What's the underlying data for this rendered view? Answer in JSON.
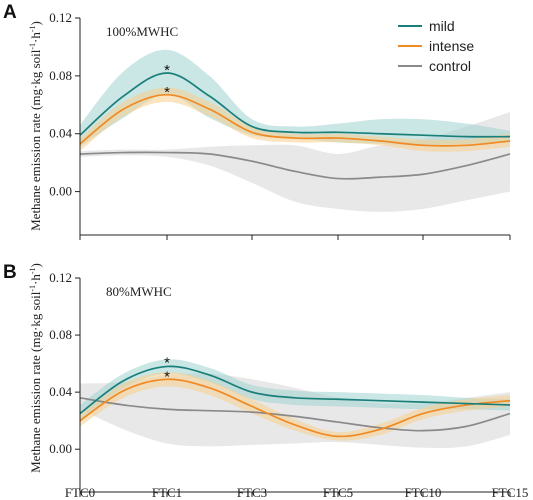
{
  "colors": {
    "mild": "#1a7f7a",
    "mild_band": "#9fd1cf",
    "intense": "#f08a24",
    "intense_band": "#f7cf8e",
    "control": "#8a8a8a",
    "control_band": "#dcdcdc"
  },
  "legend": {
    "placement": "top-right",
    "items": [
      {
        "key": "mild",
        "label": "mild"
      },
      {
        "key": "intense",
        "label": "intense"
      },
      {
        "key": "control",
        "label": "control"
      }
    ]
  },
  "chart_data": [
    {
      "type": "line",
      "panel": "A",
      "condition": "100%MWHC",
      "ylabel": {
        "main": "Methane emission rate (mg·kg soil",
        "sup1": "-1",
        "mid": "·h",
        "sup2": "-1",
        "end": ")"
      },
      "categories": [
        "FTC0",
        "FTC1",
        "FTC3",
        "FTC5",
        "FTC10",
        "FTC15"
      ],
      "ylim": [
        -0.03,
        0.12
      ],
      "yticks": [
        0.0,
        0.04,
        0.08,
        0.12
      ],
      "ytick_labels": [
        "0.00",
        "0.04",
        "0.08",
        "0.12"
      ],
      "grid": false,
      "series": [
        {
          "key": "mild",
          "name": "mild",
          "x": [
            0,
            0.5,
            1,
            1.5,
            2,
            2.5,
            3,
            3.5,
            4,
            4.5,
            5
          ],
          "values": [
            0.039,
            0.066,
            0.082,
            0.066,
            0.045,
            0.041,
            0.041,
            0.04,
            0.039,
            0.038,
            0.038
          ],
          "upper": [
            0.046,
            0.083,
            0.098,
            0.08,
            0.05,
            0.045,
            0.047,
            0.05,
            0.05,
            0.047,
            0.042
          ],
          "lower": [
            0.031,
            0.051,
            0.067,
            0.051,
            0.039,
            0.037,
            0.034,
            0.033,
            0.032,
            0.033,
            0.034
          ]
        },
        {
          "key": "intense",
          "name": "intense",
          "x": [
            0,
            0.5,
            1,
            1.5,
            2,
            2.5,
            3,
            3.5,
            4,
            4.5,
            5
          ],
          "values": [
            0.033,
            0.057,
            0.067,
            0.057,
            0.041,
            0.037,
            0.037,
            0.035,
            0.032,
            0.032,
            0.035
          ],
          "upper": [
            0.037,
            0.062,
            0.072,
            0.062,
            0.045,
            0.04,
            0.04,
            0.038,
            0.036,
            0.036,
            0.04
          ],
          "lower": [
            0.028,
            0.052,
            0.062,
            0.052,
            0.037,
            0.034,
            0.034,
            0.032,
            0.028,
            0.028,
            0.031
          ]
        },
        {
          "key": "control",
          "name": "control",
          "x": [
            0,
            0.5,
            1,
            1.5,
            2,
            2.5,
            3,
            3.5,
            4,
            4.5,
            5
          ],
          "values": [
            0.026,
            0.027,
            0.027,
            0.026,
            0.021,
            0.014,
            0.009,
            0.01,
            0.012,
            0.018,
            0.026
          ],
          "upper": [
            0.028,
            0.029,
            0.029,
            0.031,
            0.032,
            0.032,
            0.026,
            0.032,
            0.036,
            0.045,
            0.055
          ],
          "lower": [
            0.024,
            0.025,
            0.024,
            0.018,
            0.006,
            -0.007,
            -0.012,
            -0.014,
            -0.012,
            -0.006,
            0.0
          ]
        }
      ],
      "annotations": [
        {
          "text": "*",
          "x": 1,
          "y": 0.086,
          "series": "mild"
        },
        {
          "text": "*",
          "x": 1,
          "y": 0.071,
          "series": "intense"
        }
      ]
    },
    {
      "type": "line",
      "panel": "B",
      "condition": "80%MWHC",
      "ylabel": {
        "main": "Methane emission rate (mg·kg soil",
        "sup1": "-1",
        "mid": "·h",
        "sup2": "-1",
        "end": ")"
      },
      "categories": [
        "FTC0",
        "FTC1",
        "FTC3",
        "FTC5",
        "FTC10",
        "FTC15"
      ],
      "ylim": [
        -0.03,
        0.12
      ],
      "yticks": [
        0.0,
        0.04,
        0.08,
        0.12
      ],
      "ytick_labels": [
        "0.00",
        "0.04",
        "0.08",
        "0.12"
      ],
      "grid": false,
      "series": [
        {
          "key": "mild",
          "name": "mild",
          "x": [
            0,
            0.5,
            1,
            1.5,
            2,
            2.5,
            3,
            3.5,
            4,
            4.5,
            5
          ],
          "values": [
            0.025,
            0.048,
            0.058,
            0.052,
            0.04,
            0.036,
            0.035,
            0.034,
            0.033,
            0.032,
            0.031
          ],
          "upper": [
            0.031,
            0.053,
            0.063,
            0.057,
            0.045,
            0.041,
            0.04,
            0.039,
            0.038,
            0.036,
            0.035
          ],
          "lower": [
            0.019,
            0.043,
            0.053,
            0.047,
            0.035,
            0.031,
            0.03,
            0.029,
            0.028,
            0.028,
            0.027
          ]
        },
        {
          "key": "intense",
          "name": "intense",
          "x": [
            0,
            0.5,
            1,
            1.5,
            2,
            2.5,
            3,
            3.5,
            4,
            4.5,
            5
          ],
          "values": [
            0.02,
            0.041,
            0.049,
            0.043,
            0.03,
            0.017,
            0.009,
            0.014,
            0.025,
            0.031,
            0.034
          ],
          "upper": [
            0.024,
            0.046,
            0.054,
            0.048,
            0.035,
            0.021,
            0.012,
            0.018,
            0.029,
            0.035,
            0.038
          ],
          "lower": [
            0.016,
            0.036,
            0.044,
            0.038,
            0.025,
            0.013,
            0.006,
            0.01,
            0.021,
            0.027,
            0.03
          ]
        },
        {
          "key": "control",
          "name": "control",
          "x": [
            0,
            0.5,
            1,
            1.5,
            2,
            2.5,
            3,
            3.5,
            4,
            4.5,
            5
          ],
          "values": [
            0.036,
            0.031,
            0.028,
            0.027,
            0.026,
            0.023,
            0.019,
            0.015,
            0.013,
            0.016,
            0.025
          ],
          "upper": [
            0.046,
            0.047,
            0.052,
            0.053,
            0.049,
            0.043,
            0.036,
            0.032,
            0.032,
            0.036,
            0.04
          ],
          "lower": [
            0.028,
            0.014,
            0.004,
            0.002,
            0.003,
            0.004,
            0.005,
            0.003,
            0.001,
            0.002,
            0.01
          ]
        }
      ],
      "annotations": [
        {
          "text": "*",
          "x": 1,
          "y": 0.063,
          "series": "mild"
        },
        {
          "text": "*",
          "x": 1,
          "y": 0.053,
          "series": "intense"
        }
      ]
    }
  ]
}
